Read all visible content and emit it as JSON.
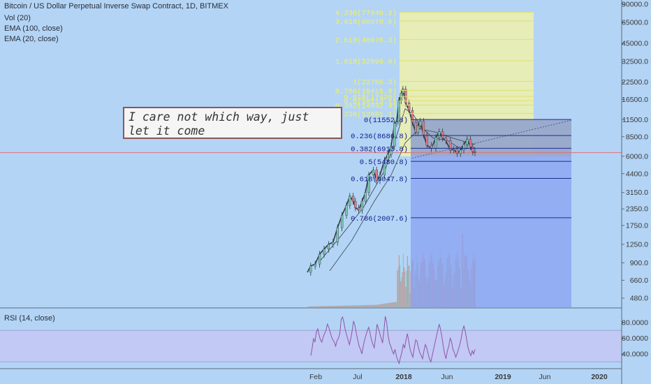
{
  "legend": {
    "title": "Bitcoin / US Dollar Perpetual Inverse Swap Contract, 1D, BITMEX",
    "volume": "Vol (20)",
    "ema100": "EMA (100, close)",
    "ema20": "EMA (20, close)",
    "rsi": "RSI (14, close)"
  },
  "note": {
    "line1": "I care not which way, just",
    "line2": "let it come"
  },
  "chart_data": [
    {
      "type": "candlestick",
      "title": "Bitcoin / US Dollar Perpetual Inverse Swap Contract, 1D, BITMEX",
      "price_scale": "log",
      "x_ticks": [
        "Feb",
        "Jul",
        "2018",
        "Jun",
        "2019",
        "Jun",
        "2020"
      ],
      "y_ticks": [
        "90000.0",
        "65000.0",
        "45000.0",
        "32500.0",
        "22500.0",
        "16500.0",
        "11500.0",
        "8500.0",
        "6000.0",
        "4400.0",
        "3150.0",
        "2350.0",
        "1750.0",
        "1250.0",
        "900.0",
        "660.0",
        "480.0"
      ],
      "price_line": 6400,
      "price_path": [
        [
          0,
          760
        ],
        [
          6,
          850
        ],
        [
          14,
          880
        ],
        [
          22,
          1050
        ],
        [
          30,
          1150
        ],
        [
          38,
          1250
        ],
        [
          46,
          1300
        ],
        [
          54,
          1680
        ],
        [
          62,
          2100
        ],
        [
          70,
          2500
        ],
        [
          76,
          2950
        ],
        [
          82,
          2700
        ],
        [
          86,
          2400
        ],
        [
          92,
          2300
        ],
        [
          98,
          2700
        ],
        [
          104,
          3150
        ],
        [
          110,
          4300
        ],
        [
          118,
          4700
        ],
        [
          124,
          3900
        ],
        [
          130,
          4300
        ],
        [
          138,
          5600
        ],
        [
          144,
          6200
        ],
        [
          150,
          7200
        ],
        [
          156,
          10800
        ],
        [
          160,
          11200
        ],
        [
          164,
          16200
        ],
        [
          168,
          18500
        ],
        [
          171,
          19800
        ],
        [
          176,
          15500
        ],
        [
          182,
          13600
        ],
        [
          188,
          11000
        ],
        [
          194,
          9200
        ],
        [
          198,
          10300
        ],
        [
          202,
          11200
        ],
        [
          208,
          8800
        ],
        [
          214,
          7300
        ],
        [
          222,
          6900
        ],
        [
          230,
          8400
        ],
        [
          236,
          9300
        ],
        [
          242,
          8300
        ],
        [
          248,
          7900
        ],
        [
          256,
          6700
        ],
        [
          262,
          6800
        ],
        [
          268,
          6300
        ],
        [
          274,
          6700
        ],
        [
          280,
          7400
        ],
        [
          286,
          8100
        ],
        [
          292,
          7100
        ],
        [
          296,
          6500
        ],
        [
          300,
          6400
        ]
      ],
      "ema20_path": [
        [
          20,
          900
        ],
        [
          60,
          1450
        ],
        [
          100,
          2400
        ],
        [
          140,
          4800
        ],
        [
          160,
          8700
        ],
        [
          175,
          14000
        ],
        [
          190,
          12500
        ],
        [
          205,
          10000
        ],
        [
          225,
          8300
        ],
        [
          250,
          8000
        ],
        [
          275,
          6800
        ],
        [
          300,
          7000
        ]
      ],
      "ema100_path": [
        [
          40,
          780
        ],
        [
          80,
          1350
        ],
        [
          120,
          2700
        ],
        [
          150,
          4300
        ],
        [
          175,
          7600
        ],
        [
          200,
          9800
        ],
        [
          230,
          9200
        ],
        [
          260,
          8300
        ],
        [
          300,
          7400
        ]
      ],
      "fibonacci": [
        {
          "label": "0(11552.8)",
          "price": 11552.8
        },
        {
          "label": "0.236(8686.8)",
          "price": 8686.8
        },
        {
          "label": "0.382(6913.8)",
          "price": 6913.8
        },
        {
          "label": "0.5(5480.8)",
          "price": 5480.8
        },
        {
          "label": "0.618(4047.8)",
          "price": 4047.8
        },
        {
          "label": "0.786(2007.6)",
          "price": 2007.6
        }
      ],
      "fib_extension": [
        {
          "label": "4.236(77940.2)",
          "price": 77940.2
        },
        {
          "label": "3.618(66678.6)",
          "price": 66678.6
        },
        {
          "label": "2.618(48076.3)",
          "price": 48076.3
        },
        {
          "label": "1.618(32896.8)",
          "price": 32896.8
        },
        {
          "label": "1(22756.3)",
          "price": 22756.3
        },
        {
          "label": "0.786(19415.8)",
          "price": 19415.8
        },
        {
          "label": "0.618(17426)",
          "price": 17426
        },
        {
          "label": "0.5(16113.1)",
          "price": 16113.1
        },
        {
          "label": "0.382(14932.4)",
          "price": 14932.4
        },
        {
          "label": "0.236(12891.1)",
          "price": 12891.1
        }
      ]
    },
    {
      "type": "line",
      "title": "RSI (14, close)",
      "y_ticks": [
        "80.0000",
        "60.0000",
        "40.0000"
      ],
      "band": [
        30,
        70
      ],
      "values": [
        38,
        48,
        60,
        55,
        68,
        72,
        64,
        58,
        55,
        62,
        66,
        70,
        78,
        74,
        68,
        62,
        58,
        55,
        50,
        57,
        60,
        66,
        84,
        87,
        80,
        70,
        64,
        58,
        52,
        60,
        70,
        82,
        76,
        66,
        58,
        50,
        46,
        40,
        50,
        58,
        64,
        70,
        74,
        66,
        58,
        52,
        48,
        62,
        78,
        72,
        66,
        60,
        54,
        70,
        88,
        80,
        64,
        54,
        50,
        44,
        40,
        46,
        38,
        32,
        28,
        36,
        42,
        52,
        48,
        58,
        66,
        56,
        46,
        40,
        36,
        48,
        58,
        56,
        48,
        42,
        38,
        34,
        44,
        52,
        48,
        40,
        34,
        30,
        38,
        46,
        54,
        62,
        70,
        78,
        72,
        62,
        50,
        40,
        34,
        44,
        50,
        60,
        56,
        46,
        42,
        36,
        40,
        46,
        52,
        60,
        70,
        76,
        68,
        58,
        48,
        42,
        38,
        44,
        40,
        46
      ]
    }
  ]
}
